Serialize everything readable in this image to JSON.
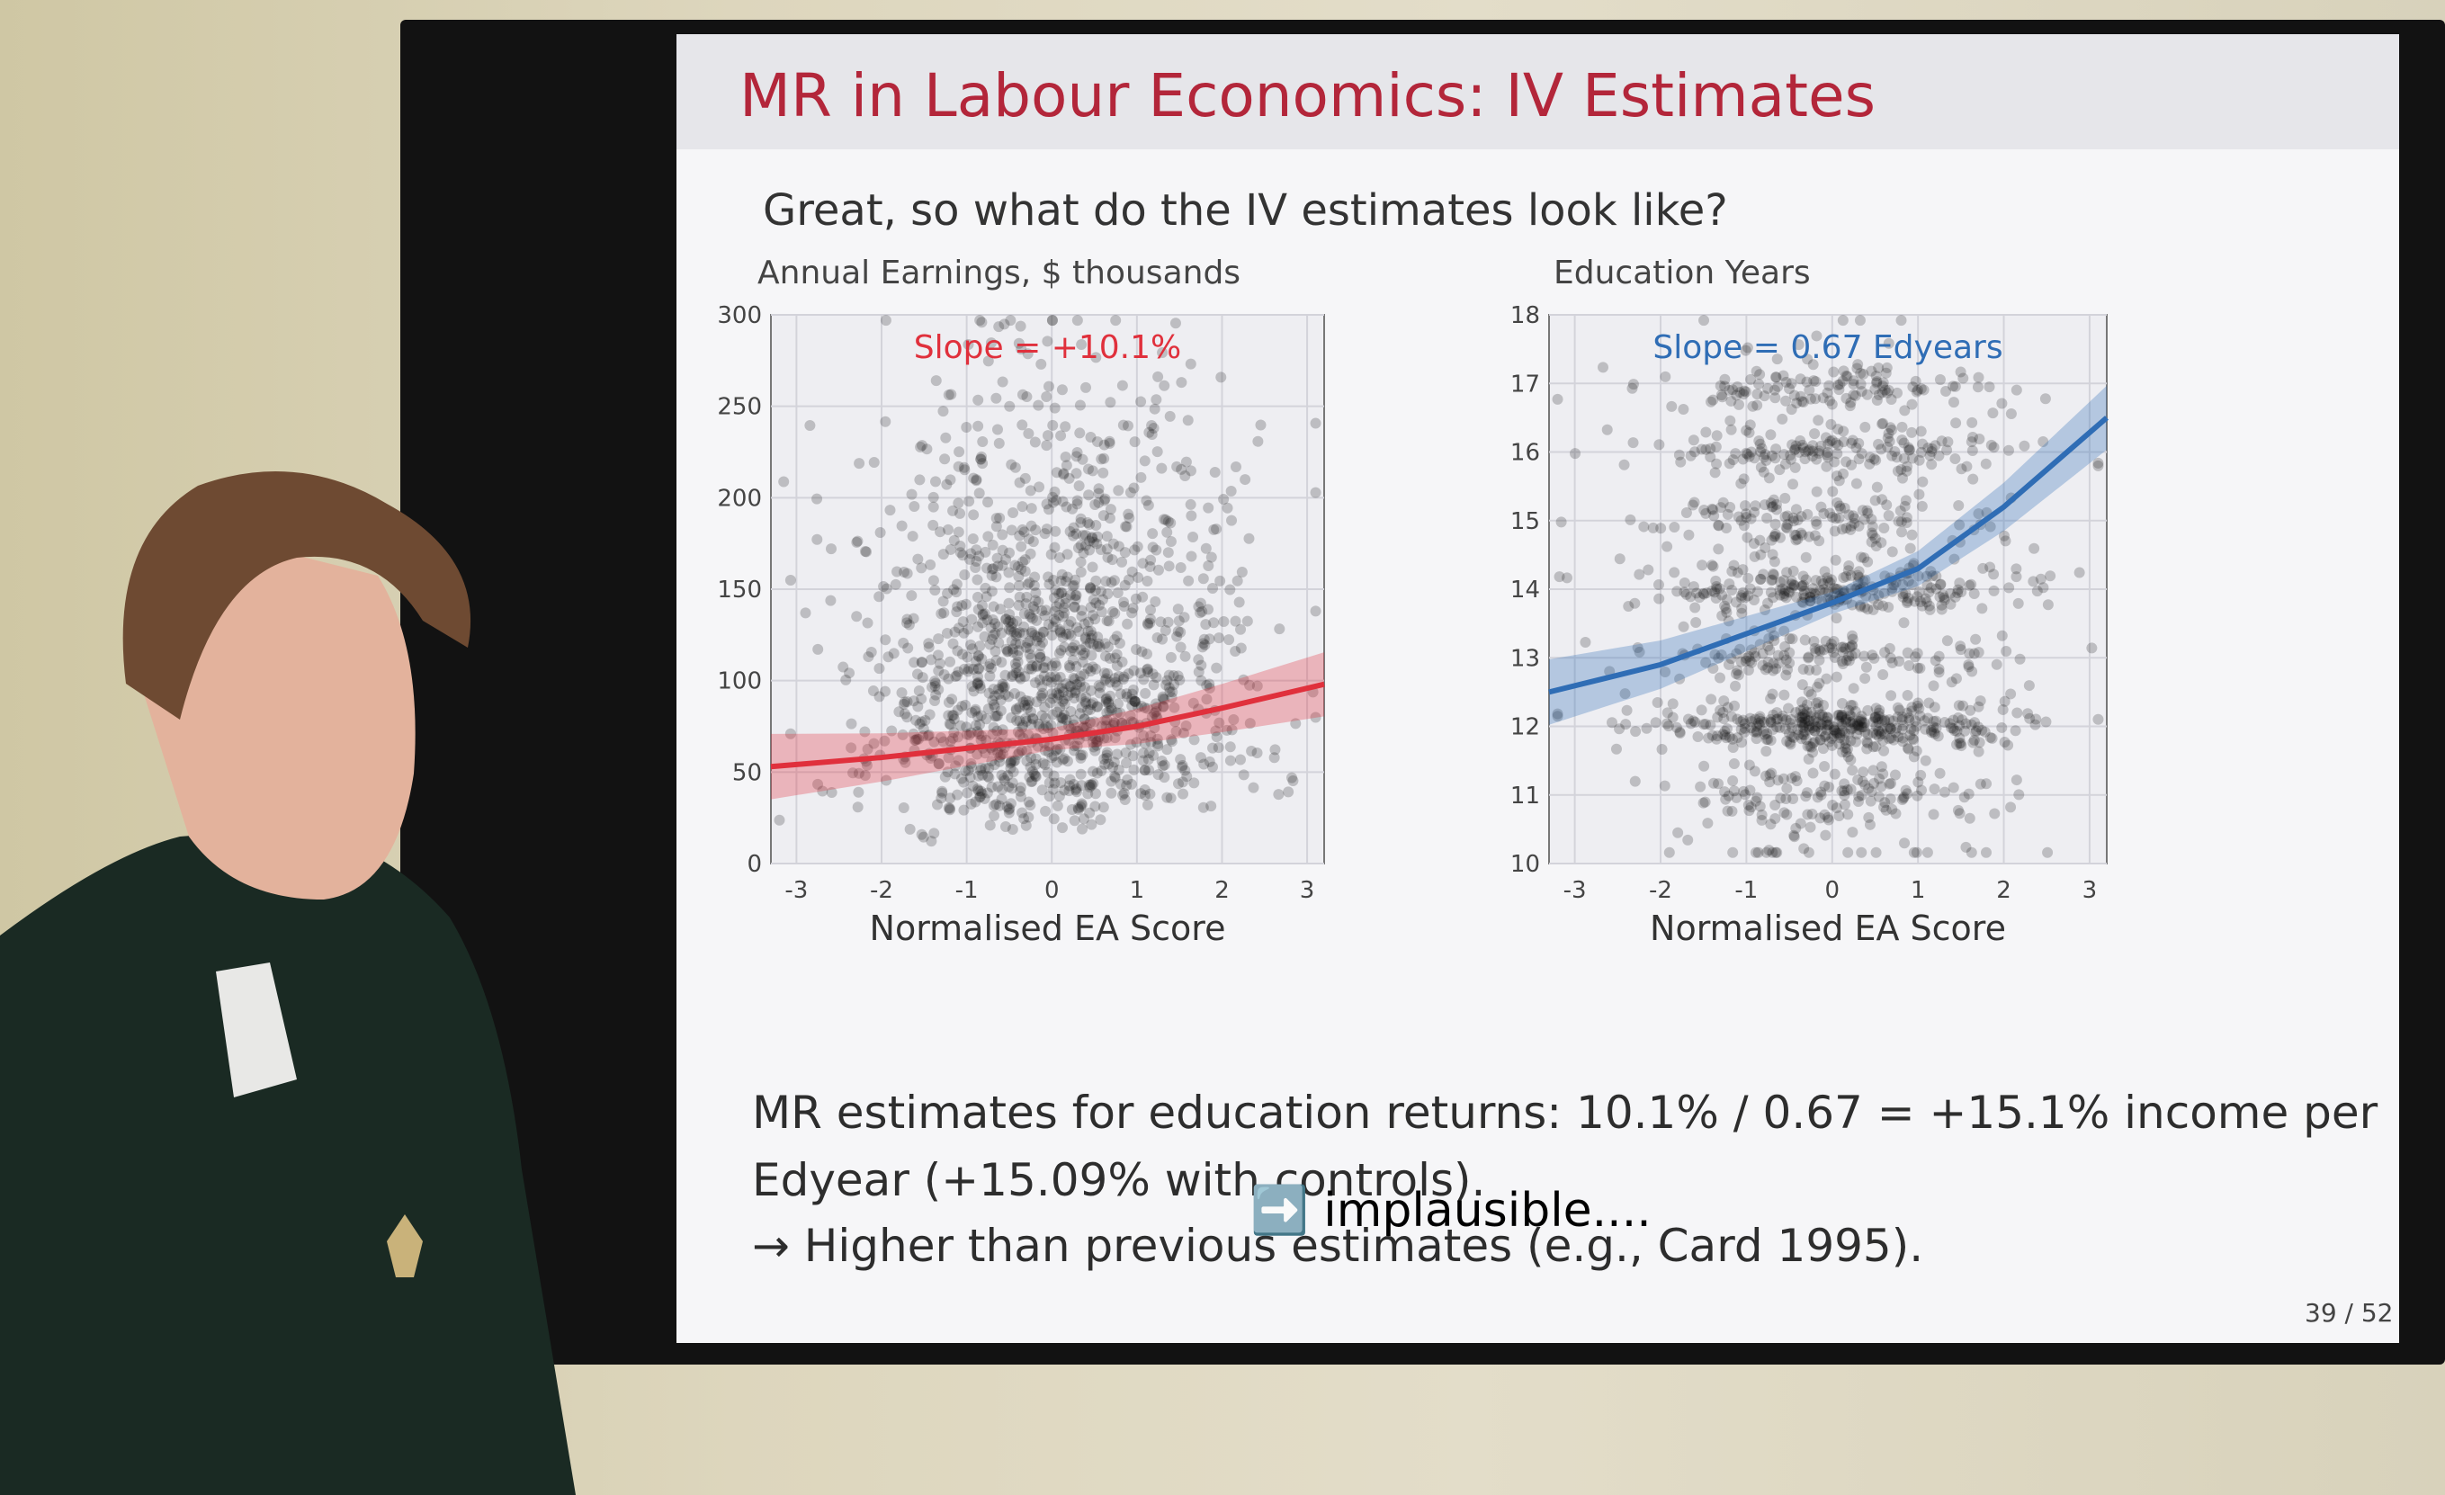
{
  "slide": {
    "title": "MR in Labour Economics: IV Estimates",
    "subtitle": "Great, so what do the IV estimates look like?",
    "left_plot_title": "Annual Earnings, $ thousands",
    "right_plot_title": "Education Years",
    "body_line1": "MR estimates for education returns: 10.1% / 0.67 = +15.1% income per",
    "body_line2": "Edyear (+15.09% with controls).",
    "body_line3": "→ Higher than previous estimates (e.g., Card 1995).",
    "annotation": "➡️ implausible....",
    "page": "39 / 52"
  },
  "chart_data": [
    {
      "type": "scatter",
      "title": "Annual Earnings, $ thousands",
      "xlabel": "Normalised EA Score",
      "ylabel": "",
      "annotation": "Slope = +10.1%",
      "xlim": [
        -3.3,
        3.2
      ],
      "ylim": [
        0,
        300
      ],
      "xticks": [
        "-3",
        "-2",
        "-1",
        "0",
        "1",
        "2",
        "3"
      ],
      "yticks": [
        "0",
        "50",
        "100",
        "150",
        "200",
        "250",
        "300"
      ],
      "fit_line": {
        "x": [
          -3.3,
          -2,
          -1,
          0,
          1,
          2,
          3.2
        ],
        "y": [
          53,
          58,
          63,
          68,
          75,
          85,
          98
        ]
      },
      "fit_color": "#e0303c",
      "grid": true
    },
    {
      "type": "scatter",
      "title": "Education Years",
      "xlabel": "Normalised EA Score",
      "ylabel": "",
      "annotation": "Slope = 0.67 Edyears",
      "xlim": [
        -3.3,
        3.2
      ],
      "ylim": [
        10,
        18
      ],
      "xticks": [
        "-3",
        "-2",
        "-1",
        "0",
        "1",
        "2",
        "3"
      ],
      "yticks": [
        "10",
        "11",
        "12",
        "13",
        "14",
        "15",
        "16",
        "17",
        "18"
      ],
      "fit_line": {
        "x": [
          -3.3,
          -2,
          -1,
          0,
          1,
          2,
          3.2
        ],
        "y": [
          12.5,
          12.9,
          13.35,
          13.8,
          14.3,
          15.2,
          16.5
        ]
      },
      "fit_color": "#2f6db5",
      "grid": true
    }
  ]
}
